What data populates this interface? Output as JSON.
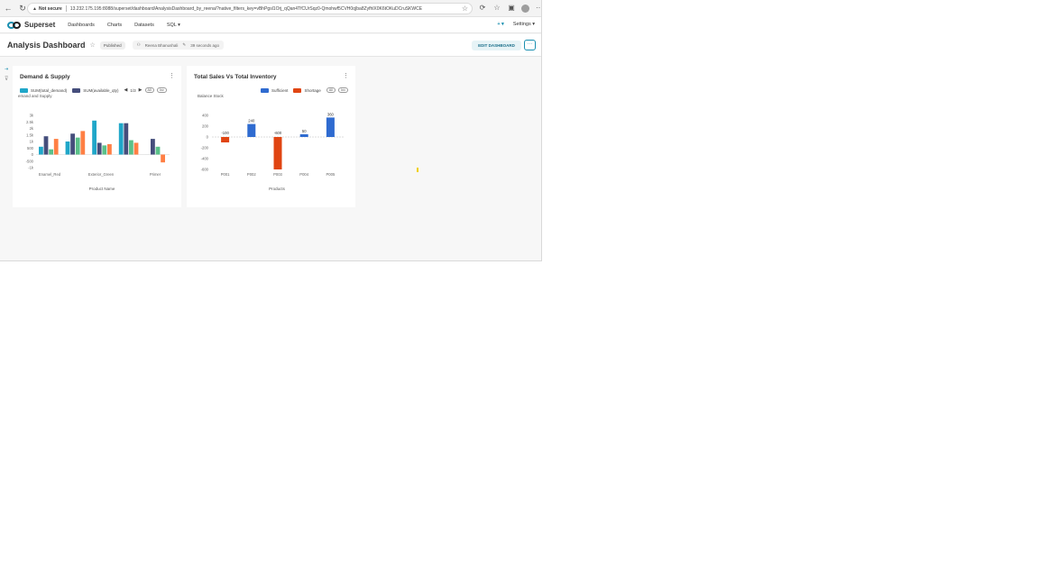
{
  "browser": {
    "not_secure": "Not secure",
    "url": "13.232.175.195:8088/superset/dashboard/AnalysisDashboard_by_reena/?native_filters_key=vBhPgsl1Orj_qQan4TfCUrSqz0-Qmohwf5CVH0q|ba8ZyfhlX0K6tOKuDCruSKWCE"
  },
  "topnav": {
    "brand": "Superset",
    "links": [
      "Dashboards",
      "Charts",
      "Datasets",
      "SQL ▾"
    ],
    "plus": "+ ▾",
    "settings": "Settings ▾"
  },
  "dashboard": {
    "title": "Analysis Dashboard",
    "status": "Published",
    "owner": "Reena Bhanushali",
    "modified": "39 seconds ago",
    "edit_label": "EDIT DASHBOARD",
    "more_label": "···"
  },
  "colors": {
    "teal": "#20a7c9",
    "navy": "#454e7c",
    "green": "#5ac189",
    "orange": "#ff7f44",
    "blue": "#2f6bd0",
    "red": "#e04512"
  },
  "chart_data": [
    {
      "type": "bar",
      "title": "Demand & Supply",
      "subtitle": "emand and Supply",
      "legend": {
        "items": [
          "SUM(total_demand)",
          "SUM(available_qty)"
        ],
        "page": "1/3",
        "all": "All",
        "inv": "Inv"
      },
      "categories": [
        "Enamel_Red",
        "",
        "Exterior_Green",
        "",
        "Primer"
      ],
      "xlabel": "Product Name",
      "yticks": [
        "3k",
        "2.5k",
        "2k",
        "1.5k",
        "1k",
        "500",
        "0",
        "-500",
        "-1k"
      ],
      "ylim": [
        -1000,
        3000
      ],
      "series": [
        {
          "name": "SUM(total_demand)",
          "values": [
            600,
            1000,
            2600,
            2400,
            0
          ],
          "color": "teal"
        },
        {
          "name": "SUM(available_qty)",
          "values": [
            1400,
            1600,
            900,
            2400,
            1200
          ],
          "color": "navy"
        },
        {
          "values": [
            400,
            1300,
            700,
            1100,
            600
          ],
          "color": "green"
        },
        {
          "values": [
            1200,
            1800,
            800,
            900,
            -600
          ],
          "color": "orange"
        }
      ]
    },
    {
      "type": "bar",
      "title": "Total Sales Vs Total Inventory",
      "ylabel": "Balance Stock",
      "legend": {
        "items": [
          "Sufficient",
          "Shortage"
        ],
        "all": "All",
        "inv": "Inv"
      },
      "categories": [
        "P001",
        "P002",
        "P003",
        "P004",
        "P005"
      ],
      "xlabel": "Products",
      "yticks": [
        "400",
        "200",
        "0",
        "-200",
        "-400",
        "-600"
      ],
      "ylim": [
        -600,
        400
      ],
      "values": [
        -100,
        240,
        -600,
        50,
        360
      ],
      "labels": [
        "-100",
        "240",
        "-600",
        "50",
        "360"
      ]
    }
  ]
}
